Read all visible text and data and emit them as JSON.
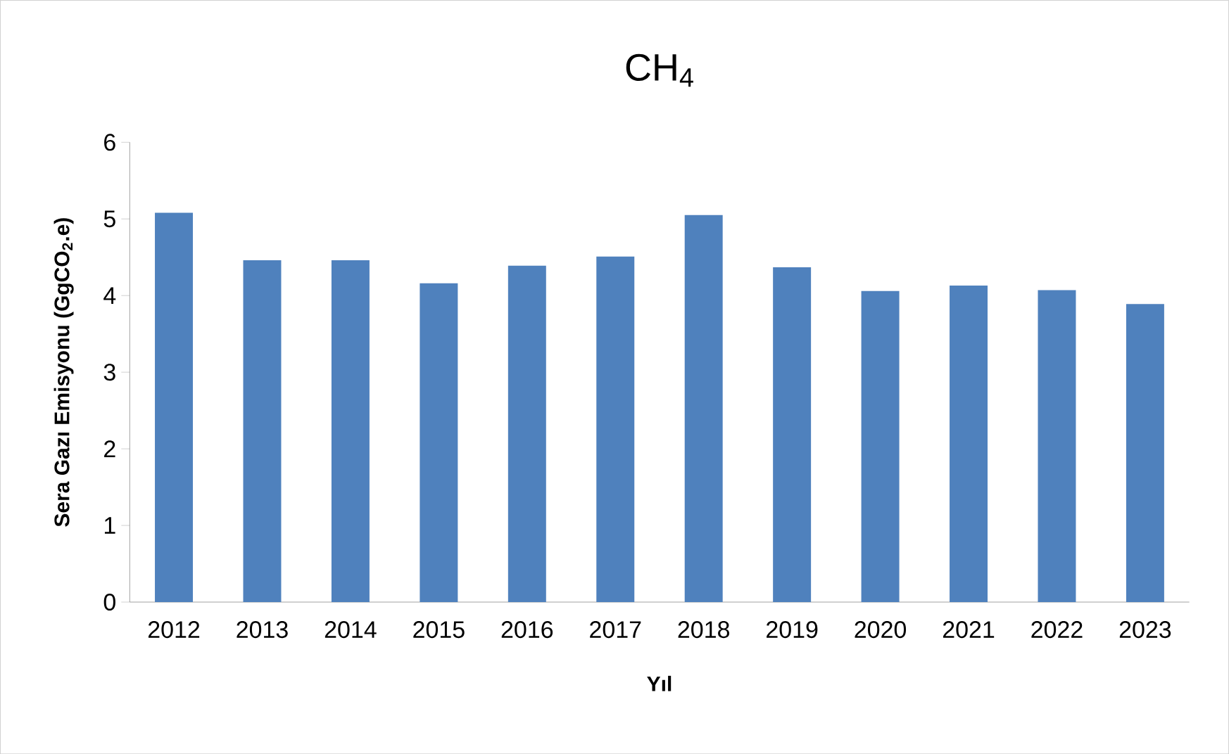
{
  "chart_data": {
    "type": "bar",
    "title": "CH$_{4}$",
    "xlabel": "Yıl",
    "ylabel": "Sera Gazı Emisyonu (GgCO$_{2}$.e)",
    "categories": [
      "2012",
      "2013",
      "2014",
      "2015",
      "2016",
      "2017",
      "2018",
      "2019",
      "2020",
      "2021",
      "2022",
      "2023"
    ],
    "values": [
      5.08,
      4.46,
      4.46,
      4.16,
      4.39,
      4.51,
      5.05,
      4.37,
      4.06,
      4.13,
      4.07,
      3.89
    ],
    "color": "#4f81bd",
    "ylim": [
      0,
      6
    ],
    "yticks": [
      0,
      1,
      2,
      3,
      4,
      5,
      6
    ]
  }
}
